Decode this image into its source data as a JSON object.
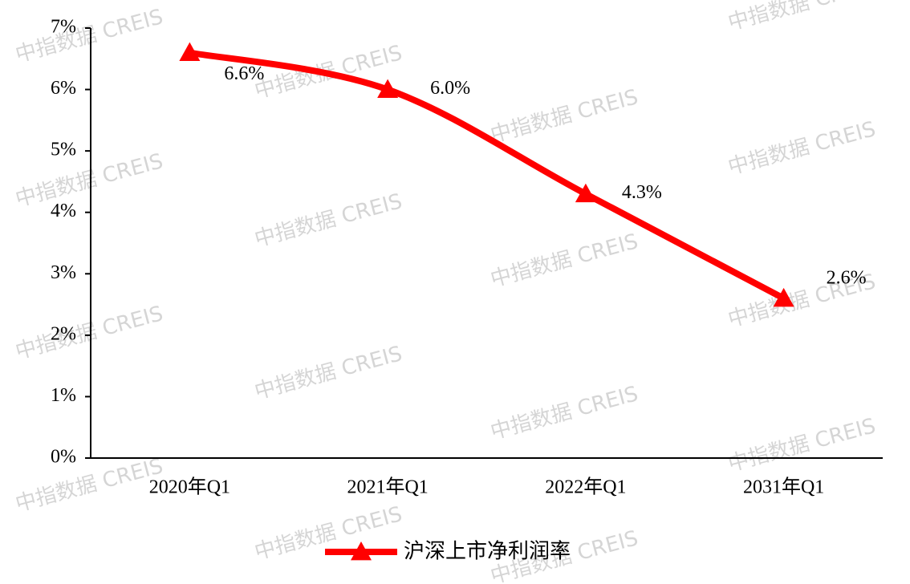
{
  "chart_data": {
    "type": "line",
    "categories": [
      "2020年Q1",
      "2021年Q1",
      "2022年Q1",
      "2031年Q1"
    ],
    "series": [
      {
        "name": "沪深上市净利润率",
        "color": "#ff0000",
        "values": [
          6.6,
          6.0,
          4.3,
          2.6
        ],
        "value_labels": [
          "6.6%",
          "6.0%",
          "4.3%",
          "2.6%"
        ]
      }
    ],
    "ylim": [
      0,
      7
    ],
    "yticks": [
      {
        "value": 0,
        "label": "0%"
      },
      {
        "value": 1,
        "label": "1%"
      },
      {
        "value": 2,
        "label": "2%"
      },
      {
        "value": 3,
        "label": "3%"
      },
      {
        "value": 4,
        "label": "4%"
      },
      {
        "value": 5,
        "label": "5%"
      },
      {
        "value": 6,
        "label": "6%"
      },
      {
        "value": 7,
        "label": "7%"
      }
    ],
    "grid": false,
    "legend": "bottom",
    "watermark": "中指数据 CREIS"
  }
}
